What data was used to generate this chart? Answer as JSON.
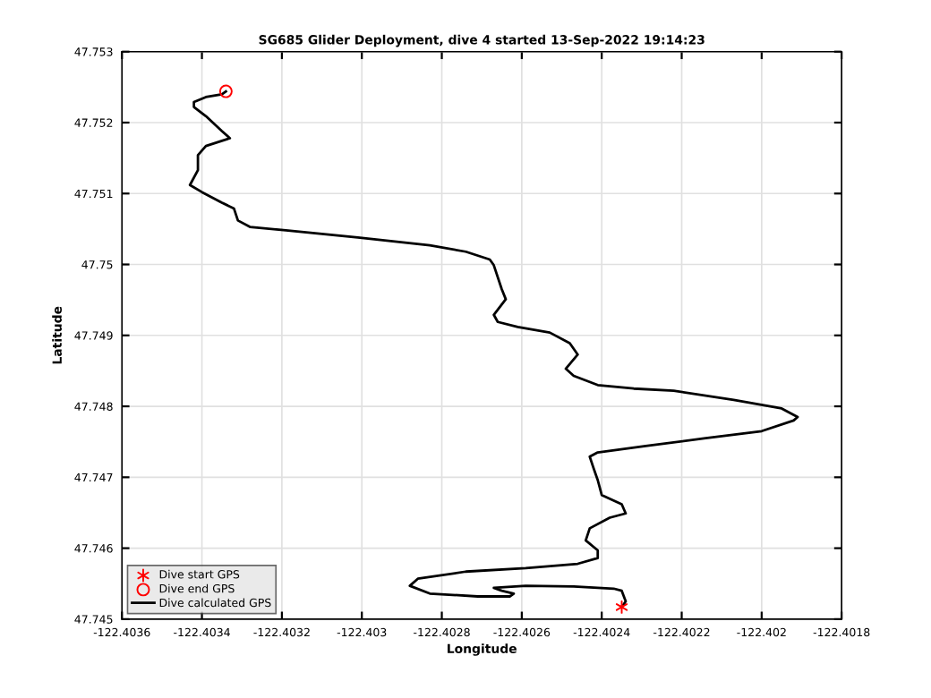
{
  "chart_data": {
    "type": "line",
    "title": "SG685 Glider Deployment, dive 4 started 13-Sep-2022 19:14:23",
    "xlabel": "Longitude",
    "ylabel": "Latitude",
    "xlim": [
      -122.4036,
      -122.4018
    ],
    "xticks": [
      -122.4036,
      -122.4034,
      -122.4032,
      -122.403,
      -122.4028,
      -122.4026,
      -122.4024,
      -122.4022,
      -122.402,
      -122.4018
    ],
    "ylim": [
      47.745,
      47.753
    ],
    "yticks": [
      47.745,
      47.746,
      47.747,
      47.748,
      47.749,
      47.75,
      47.751,
      47.752,
      47.753
    ],
    "grid": true,
    "legend": "bottom left",
    "series": [
      {
        "name": "Dive start GPS",
        "type": "scatter",
        "marker": "cross",
        "color": "#ff0000",
        "x": [
          -122.40235
        ],
        "values": [
          47.74517
        ]
      },
      {
        "name": "Dive end GPS",
        "type": "scatter",
        "marker": "circle",
        "color": "#ff0000",
        "x": [
          -122.40334
        ],
        "values": [
          47.75244
        ]
      },
      {
        "name": "Dive calculated GPS",
        "marker": "none",
        "color": "#000000",
        "x": [
          -122.40235,
          -122.40234,
          -122.40235,
          -122.40237,
          -122.40247,
          -122.40259,
          -122.40267,
          -122.40265,
          -122.40262,
          -122.40263,
          -122.40271,
          -122.40283,
          -122.40288,
          -122.40286,
          -122.40274,
          -122.40259,
          -122.40246,
          -122.40241,
          -122.40241,
          -122.40244,
          -122.40243,
          -122.40238,
          -122.40234,
          -122.40235,
          -122.4024,
          -122.40241,
          -122.40242,
          -122.40243,
          -122.40241,
          -122.40229,
          -122.40214,
          -122.402,
          -122.40192,
          -122.40191,
          -122.40195,
          -122.40207,
          -122.40222,
          -122.40232,
          -122.40241,
          -122.40247,
          -122.40249,
          -122.40246,
          -122.40248,
          -122.40253,
          -122.40261,
          -122.40266,
          -122.40267,
          -122.40264,
          -122.40265,
          -122.40267,
          -122.40268,
          -122.40274,
          -122.40283,
          -122.40301,
          -122.40319,
          -122.40328,
          -122.40331,
          -122.40332,
          -122.40335,
          -122.4034,
          -122.40343,
          -122.40341,
          -122.40341,
          -122.40339,
          -122.40333,
          -122.40335,
          -122.40339,
          -122.40342,
          -122.40342,
          -122.40339,
          -122.40335,
          -122.40334
        ],
        "values": [
          47.74517,
          47.74525,
          47.7454,
          47.74543,
          47.74546,
          47.74547,
          47.74544,
          47.7454,
          47.74536,
          47.74532,
          47.74532,
          47.74536,
          47.74547,
          47.74557,
          47.74567,
          47.74572,
          47.74578,
          47.74586,
          47.74597,
          47.74611,
          47.74628,
          47.74643,
          47.74649,
          47.74662,
          47.74675,
          47.74696,
          47.74712,
          47.74729,
          47.74735,
          47.74744,
          47.74755,
          47.74765,
          47.7478,
          47.74785,
          47.74797,
          47.74809,
          47.74822,
          47.74825,
          47.7483,
          47.74843,
          47.74853,
          47.74873,
          47.74889,
          47.74904,
          47.74912,
          47.74919,
          47.74929,
          47.74951,
          47.74965,
          47.74999,
          47.75007,
          47.75018,
          47.75027,
          47.75038,
          47.75048,
          47.75053,
          47.75062,
          47.75079,
          47.75087,
          47.75102,
          47.75112,
          47.75133,
          47.75154,
          47.75167,
          47.75178,
          47.75188,
          47.75209,
          47.75222,
          47.75229,
          47.75236,
          47.7524,
          47.75244
        ]
      }
    ]
  }
}
